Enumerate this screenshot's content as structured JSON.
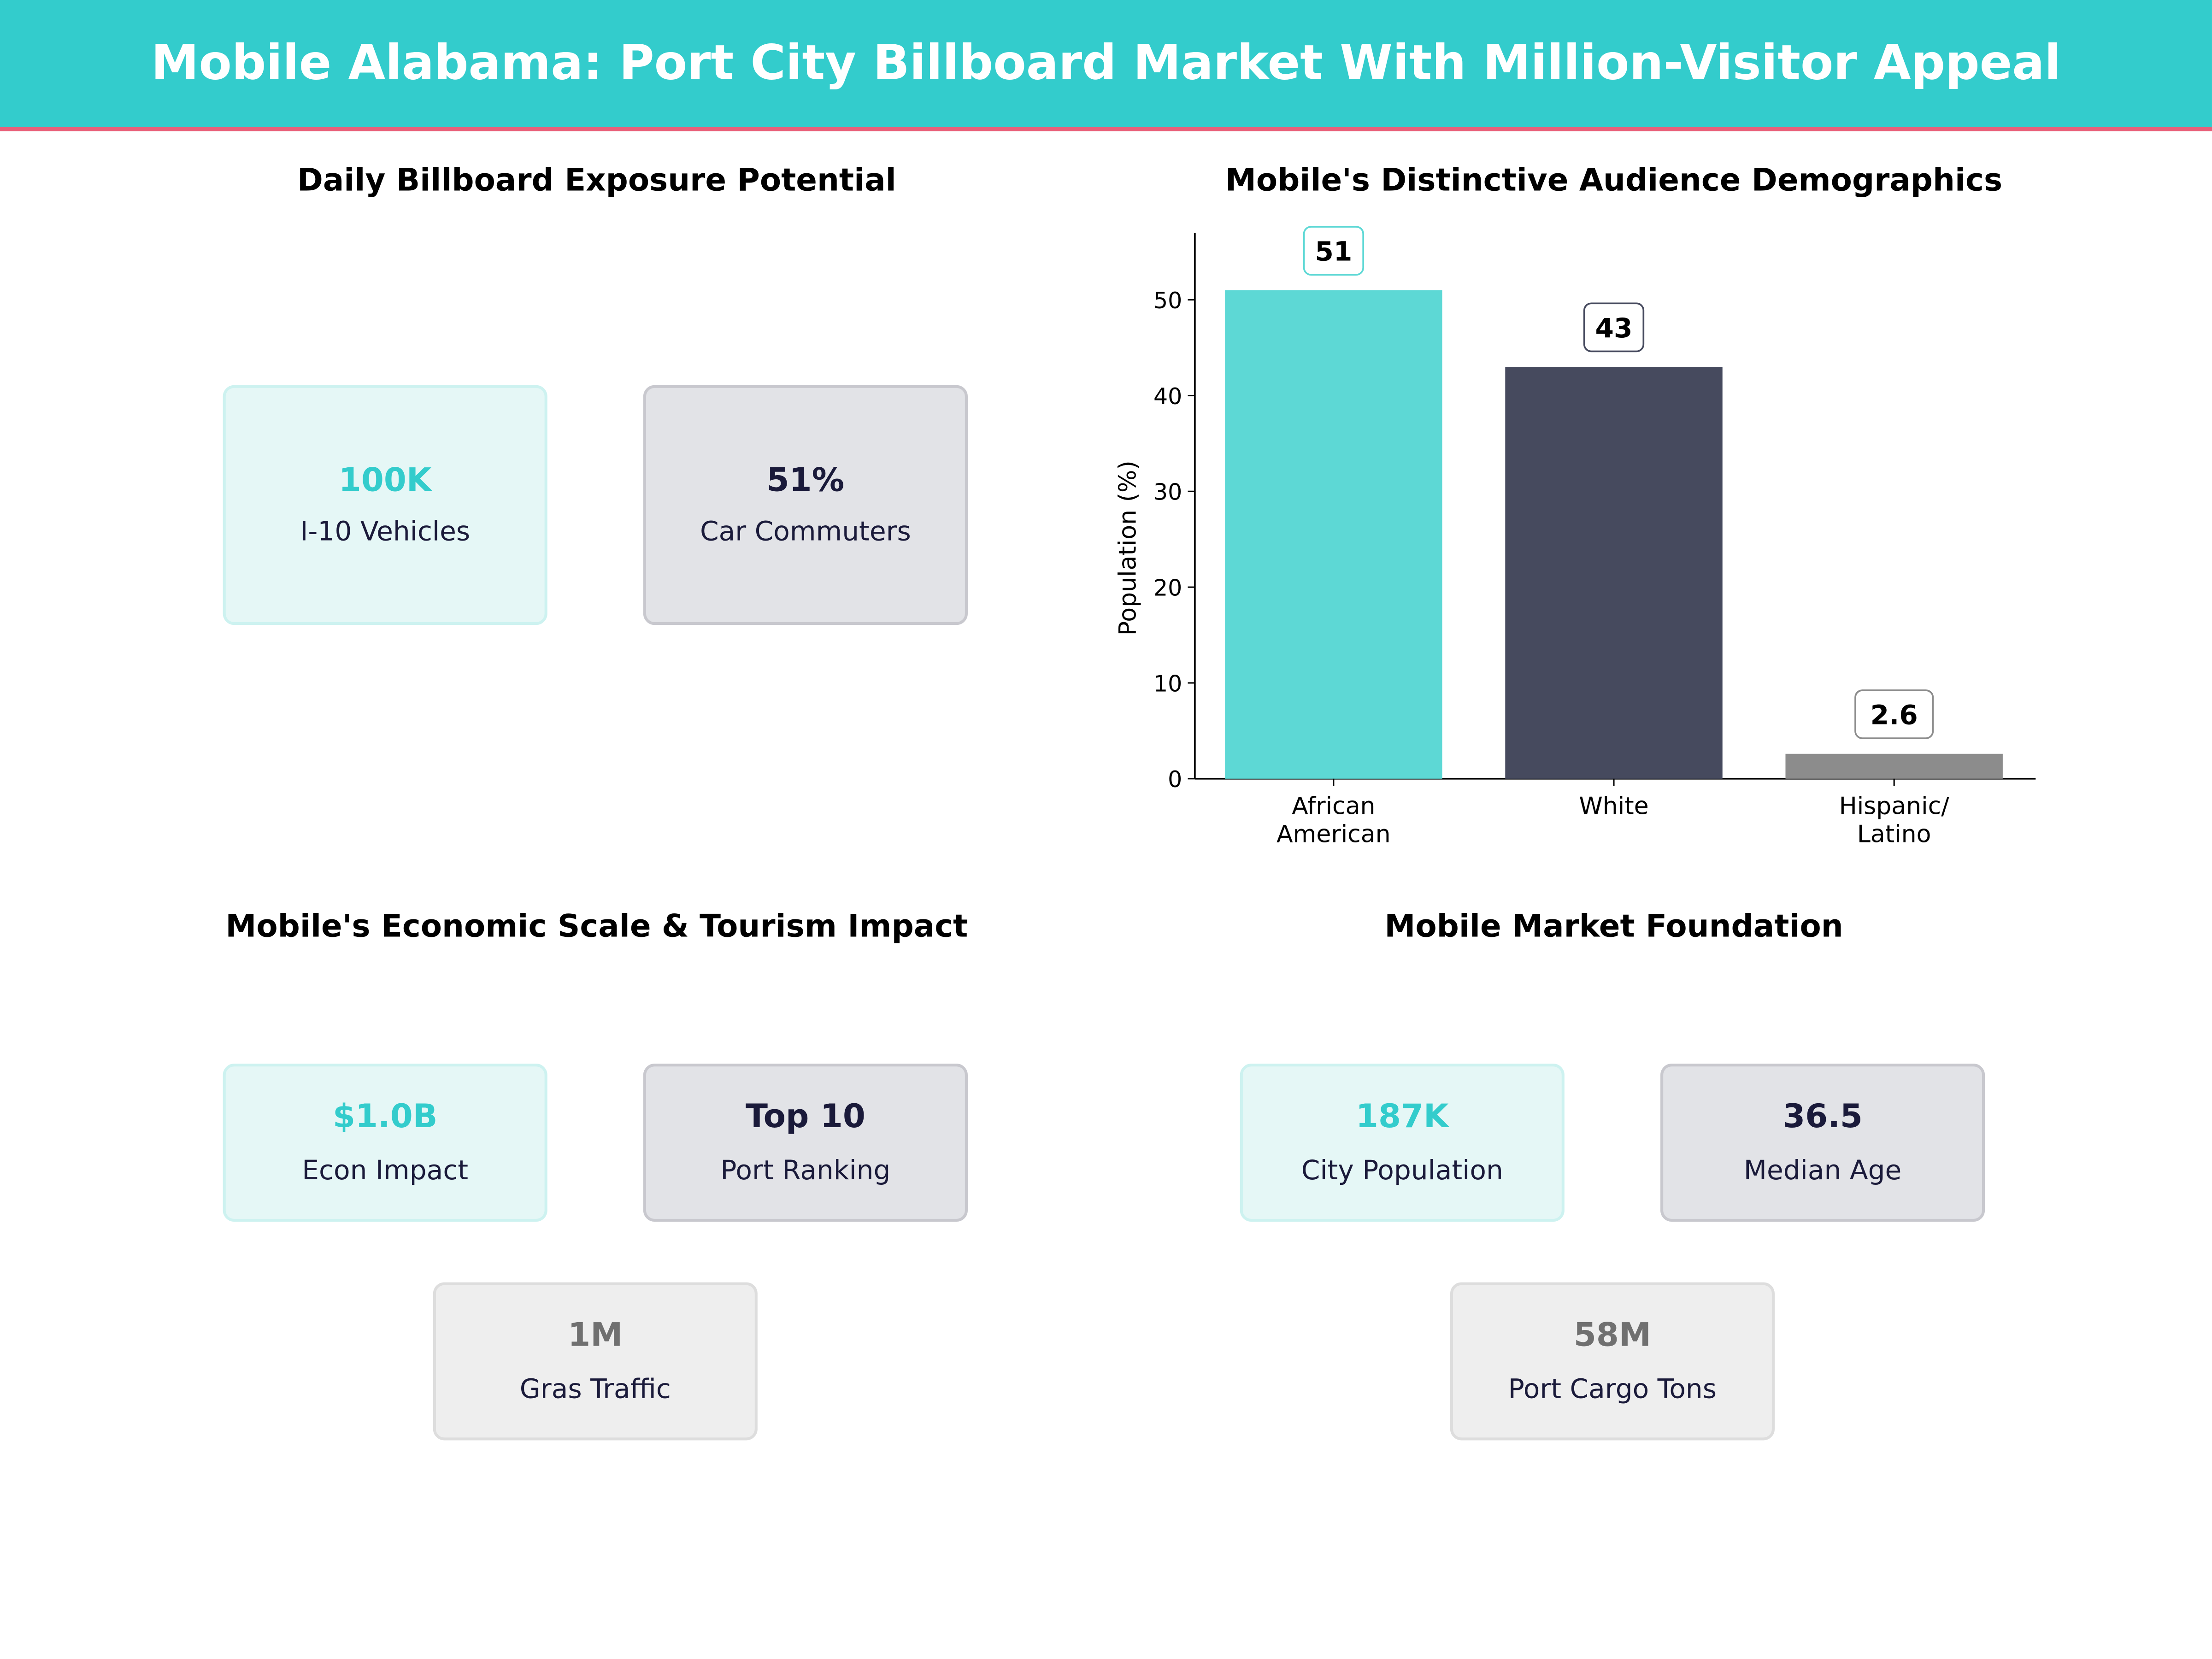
{
  "header": {
    "title": "Mobile Alabama: Port City Billboard Market With Million-Visitor Appeal"
  },
  "panels": {
    "exposure": {
      "title": "Daily Billboard Exposure Potential",
      "cards": [
        {
          "value": "100K",
          "label": "I-10 Vehicles"
        },
        {
          "value": "51%",
          "label": "Car Commuters"
        }
      ]
    },
    "economic": {
      "title": "Mobile's Economic Scale & Tourism Impact",
      "cards": [
        {
          "value": "$1.0B",
          "label": "Econ Impact"
        },
        {
          "value": "Top 10",
          "label": "Port Ranking"
        },
        {
          "value": "1M",
          "label": "Gras Traffic"
        }
      ]
    },
    "foundation": {
      "title": "Mobile Market Foundation",
      "cards": [
        {
          "value": "187K",
          "label": "City Population"
        },
        {
          "value": "36.5",
          "label": "Median Age"
        },
        {
          "value": "58M",
          "label": "Port Cargo Tons"
        }
      ]
    }
  },
  "colors": {
    "teal": "#33CCCC",
    "navy": "#464A5E",
    "gray": "#8C8C8C",
    "accent_line": "#E8607A"
  },
  "chart_data": {
    "type": "bar",
    "title": "Mobile's Distinctive Audience Demographics",
    "categories": [
      "African\nAmerican",
      "White",
      "Hispanic/\nLatino"
    ],
    "values": [
      51,
      43,
      2.6
    ],
    "data_labels": [
      "51",
      "43",
      "2.6"
    ],
    "bar_colors": [
      "#5DD8D5",
      "#464A5E",
      "#8C8C8C"
    ],
    "xlabel": "",
    "ylabel": "Population (%)",
    "ylim": [
      0,
      57
    ],
    "yticks": [
      0,
      10,
      20,
      30,
      40,
      50
    ],
    "grid": false
  }
}
